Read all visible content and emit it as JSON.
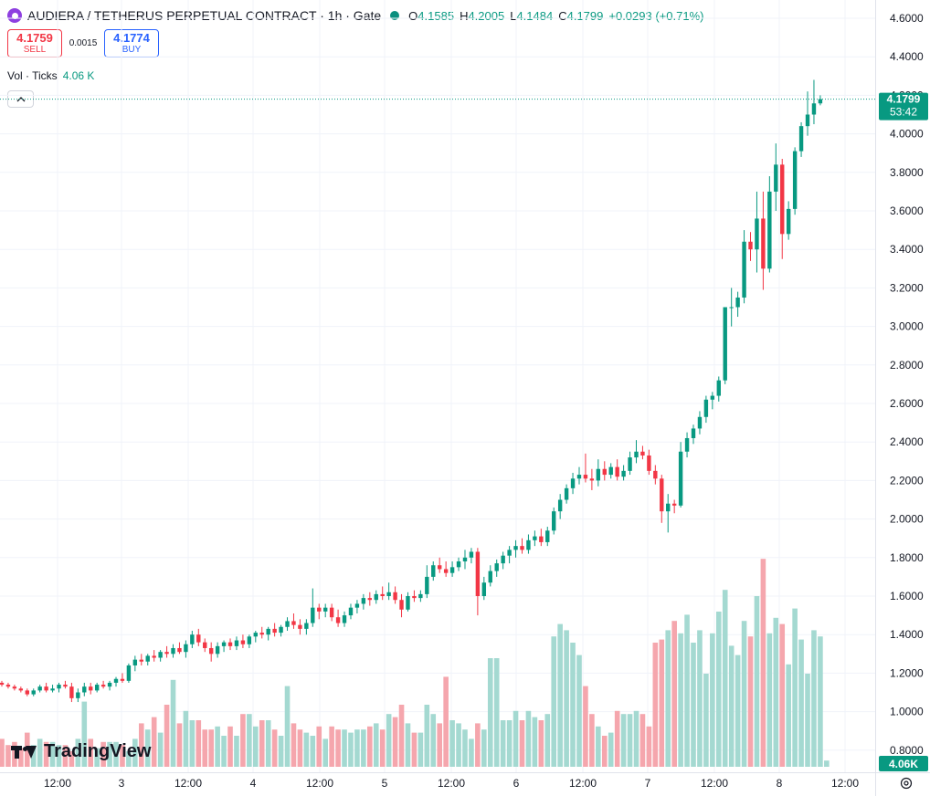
{
  "header": {
    "title": "AUDIERA / TETHERUS PERPETUAL CONTRACT · 1h · Gate",
    "ohlc": [
      {
        "label": "O",
        "value": "4.1585"
      },
      {
        "label": "H",
        "value": "4.2005"
      },
      {
        "label": "L",
        "value": "4.1484"
      },
      {
        "label": "C",
        "value": "4.1799"
      }
    ],
    "change": "+0.0293 (+0.71%)"
  },
  "trade": {
    "sell_price": "4.1759",
    "sell_label": "SELL",
    "spread": "0.0015",
    "buy_price": "4.1774",
    "buy_label": "BUY"
  },
  "volume_legend": {
    "label": "Vol · Ticks",
    "value": "4.06 K"
  },
  "price_axis": {
    "labels": [
      "4.6000",
      "4.4000",
      "4.2000",
      "4.0000",
      "3.8000",
      "3.6000",
      "3.4000",
      "3.2000",
      "3.0000",
      "2.8000",
      "2.6000",
      "2.4000",
      "2.2000",
      "2.0000",
      "1.8000",
      "1.6000",
      "1.4000",
      "1.2000",
      "1.0000",
      "0.8000"
    ],
    "last_price": "4.1799",
    "countdown": "53:42",
    "volume_tag": "4.06K"
  },
  "time_axis": {
    "labels": [
      "12:00",
      "3",
      "12:00",
      "4",
      "12:00",
      "5",
      "12:00",
      "6",
      "12:00",
      "7",
      "12:00",
      "8",
      "12:00"
    ]
  },
  "watermark": "TradingView",
  "colors": {
    "up": "#089981",
    "down": "#f23645",
    "vol_up": "#a4d9d1",
    "vol_down": "#f5a6ad",
    "price_tag": "#089981"
  },
  "icons": {
    "symbol": "audiera-logo-icon",
    "status": "market-open-dot-icon",
    "collapse": "chevron-up-icon",
    "settings": "gear-icon",
    "watermark_logo": "tradingview-logo-icon"
  },
  "chart_data": {
    "type": "candlestick",
    "ylim": [
      0.75,
      4.7
    ],
    "y_ticks": [
      4.6,
      4.4,
      4.2,
      4.0,
      3.8,
      3.6,
      3.4,
      3.2,
      3.0,
      2.8,
      2.6,
      2.4,
      2.2,
      2.0,
      1.8,
      1.6,
      1.4,
      1.2,
      1.0,
      0.8
    ],
    "last_price": 4.1799,
    "candles": [
      {
        "o": 1.15,
        "h": 1.16,
        "l": 1.13,
        "c": 1.14
      },
      {
        "o": 1.14,
        "h": 1.15,
        "l": 1.12,
        "c": 1.13
      },
      {
        "o": 1.13,
        "h": 1.14,
        "l": 1.11,
        "c": 1.12
      },
      {
        "o": 1.12,
        "h": 1.13,
        "l": 1.1,
        "c": 1.11
      },
      {
        "o": 1.11,
        "h": 1.12,
        "l": 1.08,
        "c": 1.09
      },
      {
        "o": 1.09,
        "h": 1.12,
        "l": 1.08,
        "c": 1.11
      },
      {
        "o": 1.11,
        "h": 1.14,
        "l": 1.1,
        "c": 1.13
      },
      {
        "o": 1.13,
        "h": 1.15,
        "l": 1.1,
        "c": 1.11
      },
      {
        "o": 1.11,
        "h": 1.14,
        "l": 1.1,
        "c": 1.12
      },
      {
        "o": 1.12,
        "h": 1.15,
        "l": 1.1,
        "c": 1.14
      },
      {
        "o": 1.14,
        "h": 1.16,
        "l": 1.12,
        "c": 1.13
      },
      {
        "o": 1.13,
        "h": 1.15,
        "l": 1.05,
        "c": 1.07
      },
      {
        "o": 1.07,
        "h": 1.12,
        "l": 1.05,
        "c": 1.1
      },
      {
        "o": 1.1,
        "h": 1.15,
        "l": 1.08,
        "c": 1.13
      },
      {
        "o": 1.13,
        "h": 1.15,
        "l": 1.09,
        "c": 1.11
      },
      {
        "o": 1.11,
        "h": 1.15,
        "l": 1.1,
        "c": 1.14
      },
      {
        "o": 1.14,
        "h": 1.16,
        "l": 1.12,
        "c": 1.13
      },
      {
        "o": 1.13,
        "h": 1.16,
        "l": 1.11,
        "c": 1.15
      },
      {
        "o": 1.15,
        "h": 1.18,
        "l": 1.13,
        "c": 1.17
      },
      {
        "o": 1.17,
        "h": 1.2,
        "l": 1.15,
        "c": 1.16
      },
      {
        "o": 1.16,
        "h": 1.25,
        "l": 1.15,
        "c": 1.24
      },
      {
        "o": 1.24,
        "h": 1.29,
        "l": 1.21,
        "c": 1.27
      },
      {
        "o": 1.27,
        "h": 1.3,
        "l": 1.24,
        "c": 1.26
      },
      {
        "o": 1.26,
        "h": 1.3,
        "l": 1.24,
        "c": 1.29
      },
      {
        "o": 1.29,
        "h": 1.32,
        "l": 1.26,
        "c": 1.28
      },
      {
        "o": 1.28,
        "h": 1.32,
        "l": 1.26,
        "c": 1.31
      },
      {
        "o": 1.31,
        "h": 1.34,
        "l": 1.28,
        "c": 1.3
      },
      {
        "o": 1.3,
        "h": 1.35,
        "l": 1.28,
        "c": 1.33
      },
      {
        "o": 1.33,
        "h": 1.36,
        "l": 1.3,
        "c": 1.31
      },
      {
        "o": 1.31,
        "h": 1.37,
        "l": 1.28,
        "c": 1.35
      },
      {
        "o": 1.35,
        "h": 1.42,
        "l": 1.33,
        "c": 1.4
      },
      {
        "o": 1.4,
        "h": 1.43,
        "l": 1.34,
        "c": 1.36
      },
      {
        "o": 1.36,
        "h": 1.38,
        "l": 1.31,
        "c": 1.33
      },
      {
        "o": 1.33,
        "h": 1.36,
        "l": 1.26,
        "c": 1.3
      },
      {
        "o": 1.3,
        "h": 1.36,
        "l": 1.28,
        "c": 1.34
      },
      {
        "o": 1.34,
        "h": 1.37,
        "l": 1.31,
        "c": 1.36
      },
      {
        "o": 1.36,
        "h": 1.38,
        "l": 1.32,
        "c": 1.34
      },
      {
        "o": 1.34,
        "h": 1.39,
        "l": 1.32,
        "c": 1.37
      },
      {
        "o": 1.37,
        "h": 1.4,
        "l": 1.33,
        "c": 1.35
      },
      {
        "o": 1.35,
        "h": 1.4,
        "l": 1.33,
        "c": 1.39
      },
      {
        "o": 1.39,
        "h": 1.42,
        "l": 1.36,
        "c": 1.41
      },
      {
        "o": 1.41,
        "h": 1.44,
        "l": 1.38,
        "c": 1.4
      },
      {
        "o": 1.4,
        "h": 1.44,
        "l": 1.37,
        "c": 1.43
      },
      {
        "o": 1.43,
        "h": 1.46,
        "l": 1.39,
        "c": 1.41
      },
      {
        "o": 1.41,
        "h": 1.45,
        "l": 1.39,
        "c": 1.44
      },
      {
        "o": 1.44,
        "h": 1.49,
        "l": 1.42,
        "c": 1.47
      },
      {
        "o": 1.47,
        "h": 1.51,
        "l": 1.43,
        "c": 1.45
      },
      {
        "o": 1.45,
        "h": 1.48,
        "l": 1.4,
        "c": 1.43
      },
      {
        "o": 1.43,
        "h": 1.48,
        "l": 1.4,
        "c": 1.46
      },
      {
        "o": 1.46,
        "h": 1.64,
        "l": 1.44,
        "c": 1.54
      },
      {
        "o": 1.54,
        "h": 1.56,
        "l": 1.48,
        "c": 1.52
      },
      {
        "o": 1.52,
        "h": 1.56,
        "l": 1.49,
        "c": 1.54
      },
      {
        "o": 1.54,
        "h": 1.56,
        "l": 1.47,
        "c": 1.49
      },
      {
        "o": 1.49,
        "h": 1.53,
        "l": 1.44,
        "c": 1.46
      },
      {
        "o": 1.46,
        "h": 1.52,
        "l": 1.44,
        "c": 1.5
      },
      {
        "o": 1.5,
        "h": 1.56,
        "l": 1.48,
        "c": 1.54
      },
      {
        "o": 1.54,
        "h": 1.58,
        "l": 1.51,
        "c": 1.56
      },
      {
        "o": 1.56,
        "h": 1.61,
        "l": 1.53,
        "c": 1.59
      },
      {
        "o": 1.59,
        "h": 1.62,
        "l": 1.55,
        "c": 1.58
      },
      {
        "o": 1.58,
        "h": 1.63,
        "l": 1.56,
        "c": 1.61
      },
      {
        "o": 1.61,
        "h": 1.65,
        "l": 1.58,
        "c": 1.6
      },
      {
        "o": 1.6,
        "h": 1.67,
        "l": 1.58,
        "c": 1.62
      },
      {
        "o": 1.62,
        "h": 1.65,
        "l": 1.56,
        "c": 1.58
      },
      {
        "o": 1.58,
        "h": 1.61,
        "l": 1.49,
        "c": 1.53
      },
      {
        "o": 1.53,
        "h": 1.62,
        "l": 1.52,
        "c": 1.6
      },
      {
        "o": 1.6,
        "h": 1.63,
        "l": 1.57,
        "c": 1.59
      },
      {
        "o": 1.59,
        "h": 1.63,
        "l": 1.57,
        "c": 1.61
      },
      {
        "o": 1.61,
        "h": 1.76,
        "l": 1.59,
        "c": 1.7
      },
      {
        "o": 1.7,
        "h": 1.78,
        "l": 1.68,
        "c": 1.76
      },
      {
        "o": 1.76,
        "h": 1.8,
        "l": 1.72,
        "c": 1.74
      },
      {
        "o": 1.74,
        "h": 1.78,
        "l": 1.7,
        "c": 1.72
      },
      {
        "o": 1.72,
        "h": 1.78,
        "l": 1.7,
        "c": 1.75
      },
      {
        "o": 1.75,
        "h": 1.8,
        "l": 1.73,
        "c": 1.78
      },
      {
        "o": 1.78,
        "h": 1.84,
        "l": 1.74,
        "c": 1.8
      },
      {
        "o": 1.8,
        "h": 1.85,
        "l": 1.77,
        "c": 1.83
      },
      {
        "o": 1.83,
        "h": 1.85,
        "l": 1.5,
        "c": 1.6
      },
      {
        "o": 1.6,
        "h": 1.7,
        "l": 1.58,
        "c": 1.67
      },
      {
        "o": 1.67,
        "h": 1.76,
        "l": 1.65,
        "c": 1.73
      },
      {
        "o": 1.73,
        "h": 1.79,
        "l": 1.7,
        "c": 1.77
      },
      {
        "o": 1.77,
        "h": 1.83,
        "l": 1.74,
        "c": 1.81
      },
      {
        "o": 1.81,
        "h": 1.86,
        "l": 1.77,
        "c": 1.84
      },
      {
        "o": 1.84,
        "h": 1.89,
        "l": 1.8,
        "c": 1.86
      },
      {
        "o": 1.86,
        "h": 1.9,
        "l": 1.82,
        "c": 1.84
      },
      {
        "o": 1.84,
        "h": 1.92,
        "l": 1.82,
        "c": 1.89
      },
      {
        "o": 1.89,
        "h": 1.94,
        "l": 1.86,
        "c": 1.91
      },
      {
        "o": 1.91,
        "h": 1.95,
        "l": 1.86,
        "c": 1.88
      },
      {
        "o": 1.88,
        "h": 1.96,
        "l": 1.86,
        "c": 1.94
      },
      {
        "o": 1.94,
        "h": 2.06,
        "l": 1.92,
        "c": 2.04
      },
      {
        "o": 2.04,
        "h": 2.13,
        "l": 2.0,
        "c": 2.1
      },
      {
        "o": 2.1,
        "h": 2.18,
        "l": 2.08,
        "c": 2.16
      },
      {
        "o": 2.16,
        "h": 2.24,
        "l": 2.13,
        "c": 2.21
      },
      {
        "o": 2.21,
        "h": 2.27,
        "l": 2.18,
        "c": 2.23
      },
      {
        "o": 2.23,
        "h": 2.34,
        "l": 2.19,
        "c": 2.21
      },
      {
        "o": 2.21,
        "h": 2.26,
        "l": 2.15,
        "c": 2.2
      },
      {
        "o": 2.2,
        "h": 2.31,
        "l": 2.17,
        "c": 2.26
      },
      {
        "o": 2.26,
        "h": 2.3,
        "l": 2.2,
        "c": 2.23
      },
      {
        "o": 2.23,
        "h": 2.29,
        "l": 2.21,
        "c": 2.27
      },
      {
        "o": 2.27,
        "h": 2.31,
        "l": 2.2,
        "c": 2.22
      },
      {
        "o": 2.22,
        "h": 2.28,
        "l": 2.2,
        "c": 2.25
      },
      {
        "o": 2.25,
        "h": 2.35,
        "l": 2.23,
        "c": 2.32
      },
      {
        "o": 2.32,
        "h": 2.41,
        "l": 2.29,
        "c": 2.35
      },
      {
        "o": 2.35,
        "h": 2.38,
        "l": 2.31,
        "c": 2.33
      },
      {
        "o": 2.33,
        "h": 2.36,
        "l": 2.23,
        "c": 2.25
      },
      {
        "o": 2.25,
        "h": 2.28,
        "l": 2.18,
        "c": 2.21
      },
      {
        "o": 2.21,
        "h": 2.23,
        "l": 1.98,
        "c": 2.04
      },
      {
        "o": 2.04,
        "h": 2.13,
        "l": 1.93,
        "c": 2.08
      },
      {
        "o": 2.08,
        "h": 2.1,
        "l": 2.03,
        "c": 2.07
      },
      {
        "o": 2.07,
        "h": 2.4,
        "l": 2.06,
        "c": 2.35
      },
      {
        "o": 2.35,
        "h": 2.45,
        "l": 2.32,
        "c": 2.42
      },
      {
        "o": 2.42,
        "h": 2.49,
        "l": 2.39,
        "c": 2.47
      },
      {
        "o": 2.47,
        "h": 2.56,
        "l": 2.44,
        "c": 2.53
      },
      {
        "o": 2.53,
        "h": 2.64,
        "l": 2.5,
        "c": 2.62
      },
      {
        "o": 2.62,
        "h": 2.66,
        "l": 2.57,
        "c": 2.64
      },
      {
        "o": 2.64,
        "h": 2.74,
        "l": 2.61,
        "c": 2.72
      },
      {
        "o": 2.72,
        "h": 3.1,
        "l": 2.7,
        "c": 3.1
      },
      {
        "o": 3.1,
        "h": 3.2,
        "l": 3.0,
        "c": 3.1
      },
      {
        "o": 3.1,
        "h": 3.18,
        "l": 3.05,
        "c": 3.15
      },
      {
        "o": 3.15,
        "h": 3.5,
        "l": 3.12,
        "c": 3.44
      },
      {
        "o": 3.44,
        "h": 3.49,
        "l": 3.34,
        "c": 3.4
      },
      {
        "o": 3.4,
        "h": 3.7,
        "l": 3.28,
        "c": 3.56
      },
      {
        "o": 3.56,
        "h": 3.7,
        "l": 3.19,
        "c": 3.3
      },
      {
        "o": 3.3,
        "h": 3.78,
        "l": 3.28,
        "c": 3.7
      },
      {
        "o": 3.7,
        "h": 3.95,
        "l": 3.6,
        "c": 3.84
      },
      {
        "o": 3.84,
        "h": 3.87,
        "l": 3.35,
        "c": 3.48
      },
      {
        "o": 3.48,
        "h": 3.65,
        "l": 3.45,
        "c": 3.61
      },
      {
        "o": 3.61,
        "h": 3.93,
        "l": 3.58,
        "c": 3.91
      },
      {
        "o": 3.91,
        "h": 4.06,
        "l": 3.88,
        "c": 4.04
      },
      {
        "o": 4.04,
        "h": 4.22,
        "l": 3.99,
        "c": 4.1
      },
      {
        "o": 4.1,
        "h": 4.28,
        "l": 4.05,
        "c": 4.158
      },
      {
        "o": 4.158,
        "h": 4.2,
        "l": 4.148,
        "c": 4.18
      }
    ],
    "volume_scale_max": 1.0,
    "volumes": [
      0.09,
      0.07,
      0.08,
      0.06,
      0.11,
      0.07,
      0.09,
      0.08,
      0.08,
      0.07,
      0.07,
      0.05,
      0.09,
      0.21,
      0.09,
      0.06,
      0.08,
      0.08,
      0.08,
      0.07,
      0.05,
      0.09,
      0.14,
      0.12,
      0.16,
      0.11,
      0.2,
      0.28,
      0.14,
      0.18,
      0.15,
      0.15,
      0.12,
      0.12,
      0.13,
      0.1,
      0.13,
      0.1,
      0.17,
      0.17,
      0.13,
      0.15,
      0.15,
      0.12,
      0.1,
      0.26,
      0.14,
      0.12,
      0.11,
      0.1,
      0.13,
      0.09,
      0.13,
      0.12,
      0.12,
      0.11,
      0.12,
      0.12,
      0.13,
      0.14,
      0.12,
      0.17,
      0.16,
      0.2,
      0.14,
      0.11,
      0.11,
      0.2,
      0.17,
      0.14,
      0.29,
      0.15,
      0.14,
      0.12,
      0.09,
      0.14,
      0.12,
      0.35,
      0.35,
      0.15,
      0.15,
      0.18,
      0.15,
      0.18,
      0.16,
      0.15,
      0.17,
      0.42,
      0.46,
      0.44,
      0.4,
      0.36,
      0.26,
      0.17,
      0.13,
      0.1,
      0.11,
      0.18,
      0.17,
      0.17,
      0.18,
      0.17,
      0.13,
      0.4,
      0.41,
      0.44,
      0.47,
      0.43,
      0.49,
      0.4,
      0.44,
      0.3,
      0.43,
      0.5,
      0.57,
      0.39,
      0.36,
      0.47,
      0.42,
      0.55,
      0.67,
      0.43,
      0.48,
      0.46,
      0.33,
      0.51,
      0.41,
      0.3,
      0.44,
      0.42,
      0.02
    ]
  }
}
